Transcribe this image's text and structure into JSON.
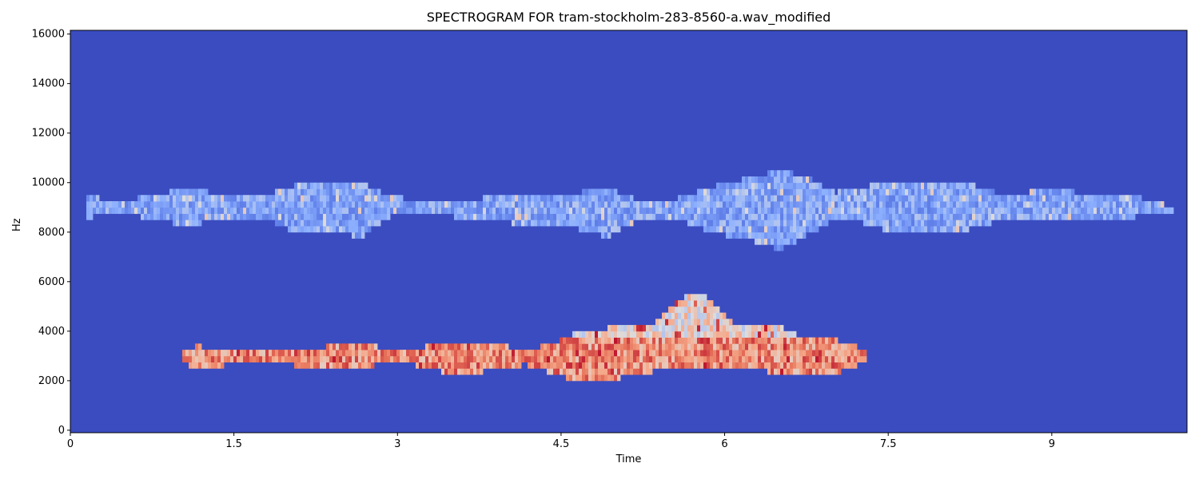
{
  "chart_data": {
    "type": "heatmap",
    "title": "SPECTROGRAM FOR tram-stockholm-283-8560-a.wav_modified",
    "xlabel": "Time",
    "ylabel": "Hz",
    "xlim": [
      0,
      10.24
    ],
    "ylim": [
      -100,
      16150
    ],
    "x_ticks": [
      0,
      1.5,
      3,
      4.5,
      6,
      7.5,
      9
    ],
    "x_tick_labels": [
      "0",
      "1.5",
      "3",
      "4.5",
      "6",
      "7.5",
      "9"
    ],
    "y_ticks": [
      0,
      2000,
      4000,
      6000,
      8000,
      10000,
      12000,
      14000,
      16000
    ],
    "y_tick_labels": [
      "0",
      "2000",
      "4000",
      "6000",
      "8000",
      "10000",
      "12000",
      "14000",
      "16000"
    ],
    "colormap": "coolwarm",
    "background_color": "#3b4cc0",
    "bands": [
      {
        "name": "upper band",
        "intensity": "low-mid",
        "columns": [
          [
            0.12,
            8550,
            9500
          ],
          [
            0.4,
            8800,
            9250
          ],
          [
            0.8,
            8500,
            9500
          ],
          [
            1.05,
            8250,
            9800
          ],
          [
            1.4,
            8600,
            9500
          ],
          [
            1.85,
            8400,
            9600
          ],
          [
            2.05,
            8000,
            9900
          ],
          [
            2.4,
            8050,
            10000
          ],
          [
            2.65,
            7800,
            10000
          ],
          [
            2.9,
            8600,
            9500
          ],
          [
            3.2,
            8850,
            9200
          ],
          [
            3.55,
            8600,
            9300
          ],
          [
            3.85,
            8600,
            9400
          ],
          [
            4.1,
            8300,
            9600
          ],
          [
            4.5,
            8300,
            9500
          ],
          [
            4.9,
            7800,
            9800
          ],
          [
            5.2,
            8500,
            9300
          ],
          [
            5.5,
            8600,
            9300
          ],
          [
            5.85,
            8000,
            9800
          ],
          [
            6.2,
            7700,
            10200
          ],
          [
            6.5,
            7300,
            10500
          ],
          [
            6.75,
            7900,
            10200
          ],
          [
            7.0,
            8500,
            9600
          ],
          [
            7.25,
            8400,
            9800
          ],
          [
            7.5,
            8000,
            10100
          ],
          [
            7.85,
            8000,
            10000
          ],
          [
            8.2,
            8100,
            10000
          ],
          [
            8.55,
            8500,
            9500
          ],
          [
            8.9,
            8500,
            9700
          ],
          [
            9.3,
            8500,
            9600
          ],
          [
            9.7,
            8600,
            9500
          ],
          [
            10.1,
            8800,
            9000
          ]
        ]
      },
      {
        "name": "lower band",
        "intensity": "high",
        "columns": [
          [
            1.0,
            2750,
            3150
          ],
          [
            1.15,
            2500,
            3400
          ],
          [
            1.65,
            2750,
            3150
          ],
          [
            2.4,
            2500,
            3400
          ],
          [
            2.55,
            2500,
            3600
          ],
          [
            2.75,
            2600,
            3500
          ],
          [
            2.9,
            2800,
            3150
          ],
          [
            3.1,
            2700,
            3150
          ],
          [
            3.3,
            2450,
            3450
          ],
          [
            3.5,
            2250,
            3600
          ],
          [
            3.95,
            2450,
            3450
          ],
          [
            4.15,
            2650,
            3200
          ],
          [
            4.5,
            2150,
            3650
          ],
          [
            4.6,
            2050,
            3900
          ],
          [
            4.95,
            2050,
            4150
          ],
          [
            5.3,
            2350,
            4150
          ],
          [
            5.4,
            2550,
            4650
          ],
          [
            5.55,
            2550,
            5200
          ],
          [
            5.7,
            2550,
            5650
          ],
          [
            5.85,
            2550,
            5300
          ],
          [
            6.1,
            2550,
            4200
          ],
          [
            6.5,
            2300,
            4150
          ],
          [
            6.6,
            2250,
            3900
          ],
          [
            7.0,
            2250,
            3650
          ],
          [
            7.2,
            2650,
            3400
          ],
          [
            7.3,
            2750,
            3200
          ]
        ]
      }
    ]
  }
}
